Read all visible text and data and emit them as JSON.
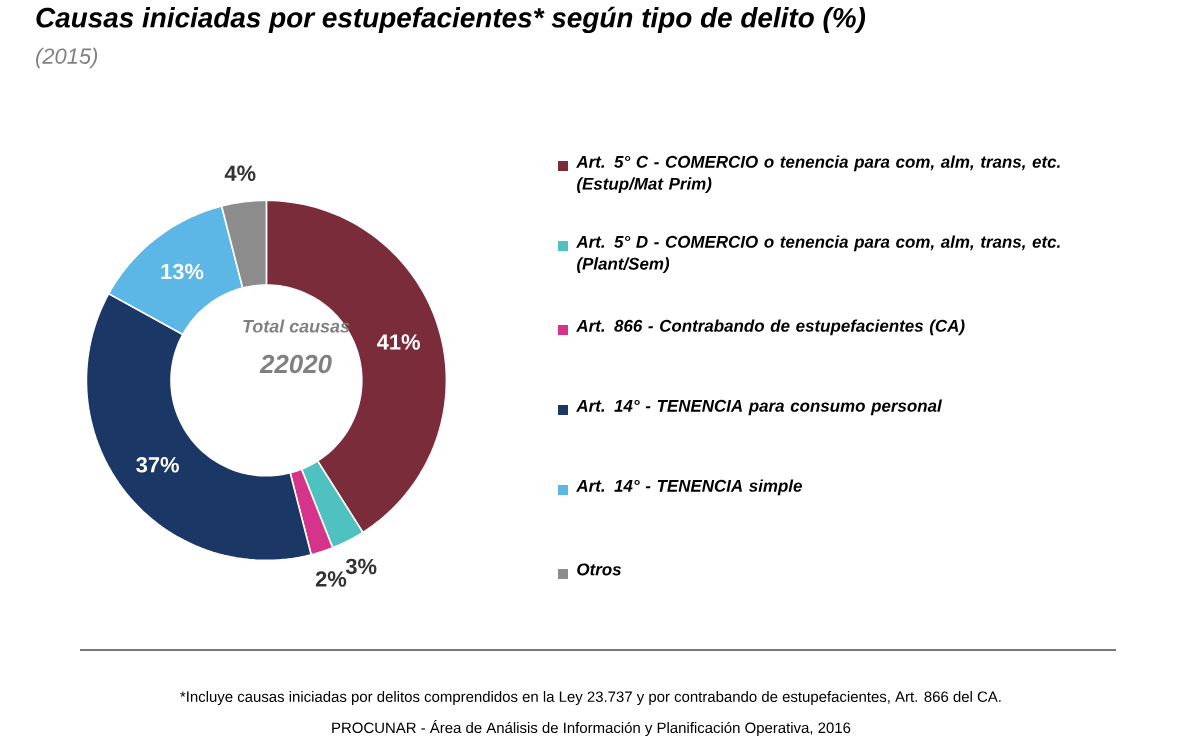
{
  "chart_data": {
    "type": "donut",
    "title": "Causas iniciadas por estupefacientes* según tipo de delito (%)",
    "subtitle": "(2015)",
    "categories": [
      "Art. 5° C - COMERCIO o tenencia para com, alm, trans, etc. (Estup/Mat Prim)",
      "Art. 5° D - COMERCIO o tenencia para com, alm, trans, etc. (Plant/Sem)",
      "Art. 866 - Contrabando de estupefacientes (CA)",
      "Art. 14° - TENENCIA para consumo personal",
      "Art. 14° - TENENCIA simple",
      "Otros"
    ],
    "values": [
      41,
      3,
      2,
      37,
      13,
      4
    ],
    "value_labels": [
      "41%",
      "3%",
      "2%",
      "37%",
      "13%",
      "4%"
    ],
    "colors": [
      "#7b2c3a",
      "#4fc1c0",
      "#d6338a",
      "#1b3766",
      "#5cb7e6",
      "#8c8c8c"
    ],
    "legend": "right",
    "annotations": [
      "Total causas",
      "22020",
      "*Incluye causas iniciadas por delitos comprendidos en la Ley 23.737 y por contrabando de estupefacientes, Art. 866 del CA.",
      "PROCUNAR - Área de Análisis de Información y Planificación Operativa, 2016"
    ]
  }
}
